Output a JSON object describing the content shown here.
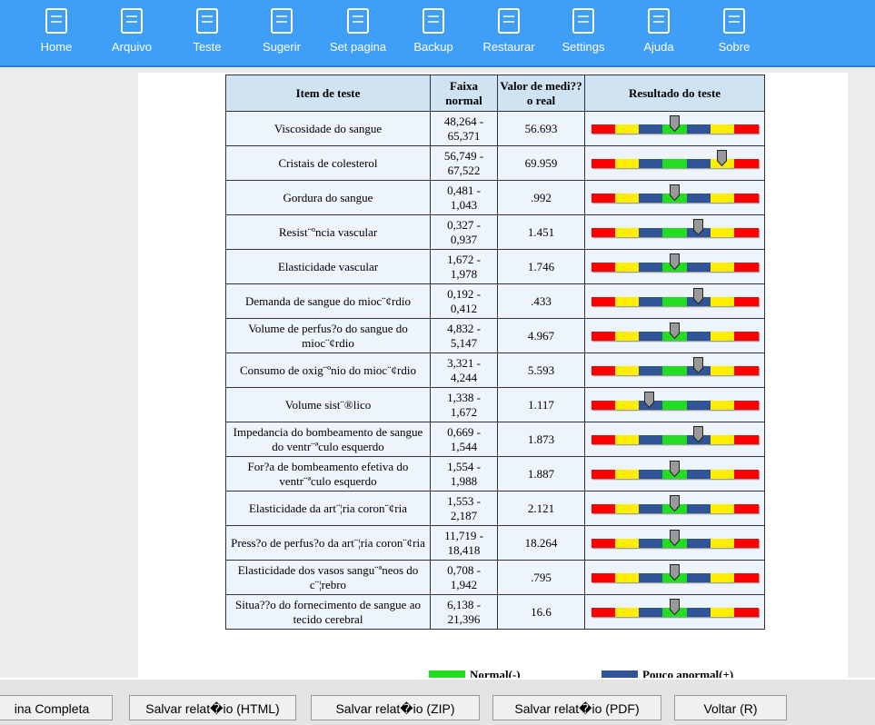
{
  "toolbar": [
    "Home",
    "Arquivo",
    "Teste",
    "Sugerir",
    "Set pagina",
    "Backup",
    "Restaurar",
    "Settings",
    "Ajuda",
    "Sobre"
  ],
  "table": {
    "headers": [
      "Item de teste",
      "Faixa normal",
      "Valor de medi??o real",
      "Resultado do teste"
    ],
    "rows": [
      {
        "item": "Viscosidade do sangue",
        "range": "48,264 - 65,371",
        "value": "56.693",
        "level": 50
      },
      {
        "item": "Cristais de colesterol",
        "range": "56,749 - 67,522",
        "value": "69.959",
        "level": 78
      },
      {
        "item": "Gordura do sangue",
        "range": "0,481 - 1,043",
        "value": ".992",
        "level": 50
      },
      {
        "item": "Resist¨ºncia vascular",
        "range": "0,327 - 0,937",
        "value": "1.451",
        "level": 64
      },
      {
        "item": "Elasticidade vascular",
        "range": "1,672 - 1,978",
        "value": "1.746",
        "level": 50
      },
      {
        "item": "Demanda de sangue do mioc¨¢rdio",
        "range": "0,192 - 0,412",
        "value": ".433",
        "level": 64
      },
      {
        "item": "Volume de perfus?o do sangue do mioc¨¢rdio",
        "range": "4,832 - 5,147",
        "value": "4.967",
        "level": 50
      },
      {
        "item": "Consumo de oxig¨ºnio do mioc¨¢rdio",
        "range": "3,321 - 4,244",
        "value": "5.593",
        "level": 64
      },
      {
        "item": "Volume sist¨®lico",
        "range": "1,338 - 1,672",
        "value": "1.117",
        "level": 35
      },
      {
        "item": "Impedancia do bombeamento de sangue do ventr¨ªculo esquerdo",
        "range": "0,669 - 1,544",
        "value": "1.873",
        "level": 64
      },
      {
        "item": "For?a de bombeamento efetiva do ventr¨ªculo esquerdo",
        "range": "1,554 - 1,988",
        "value": "1.887",
        "level": 50
      },
      {
        "item": "Elasticidade da art¨¦ria coron¨¢ria",
        "range": "1,553 - 2,187",
        "value": "2.121",
        "level": 50
      },
      {
        "item": "Press?o de perfus?o da art¨¦ria coron¨¢ria",
        "range": "11,719 - 18,418",
        "value": "18.264",
        "level": 50
      },
      {
        "item": "Elasticidade dos vasos sangu¨ªneos do c¨¦rebro",
        "range": "0,708 - 1,942",
        "value": ".795",
        "level": 50
      },
      {
        "item": "Situa??o do fornecimento de sangue ao tecido cerebral",
        "range": "6,138 - 21,396",
        "value": "16.6",
        "level": 50
      }
    ]
  },
  "legend": [
    "Normal(-)",
    "Pouco anormal(+)"
  ],
  "buttons": [
    "ina Completa",
    "Salvar relat�io (HTML)",
    "Salvar relat�io (ZIP)",
    "Salvar relat�io (PDF)",
    "Voltar (R)"
  ]
}
